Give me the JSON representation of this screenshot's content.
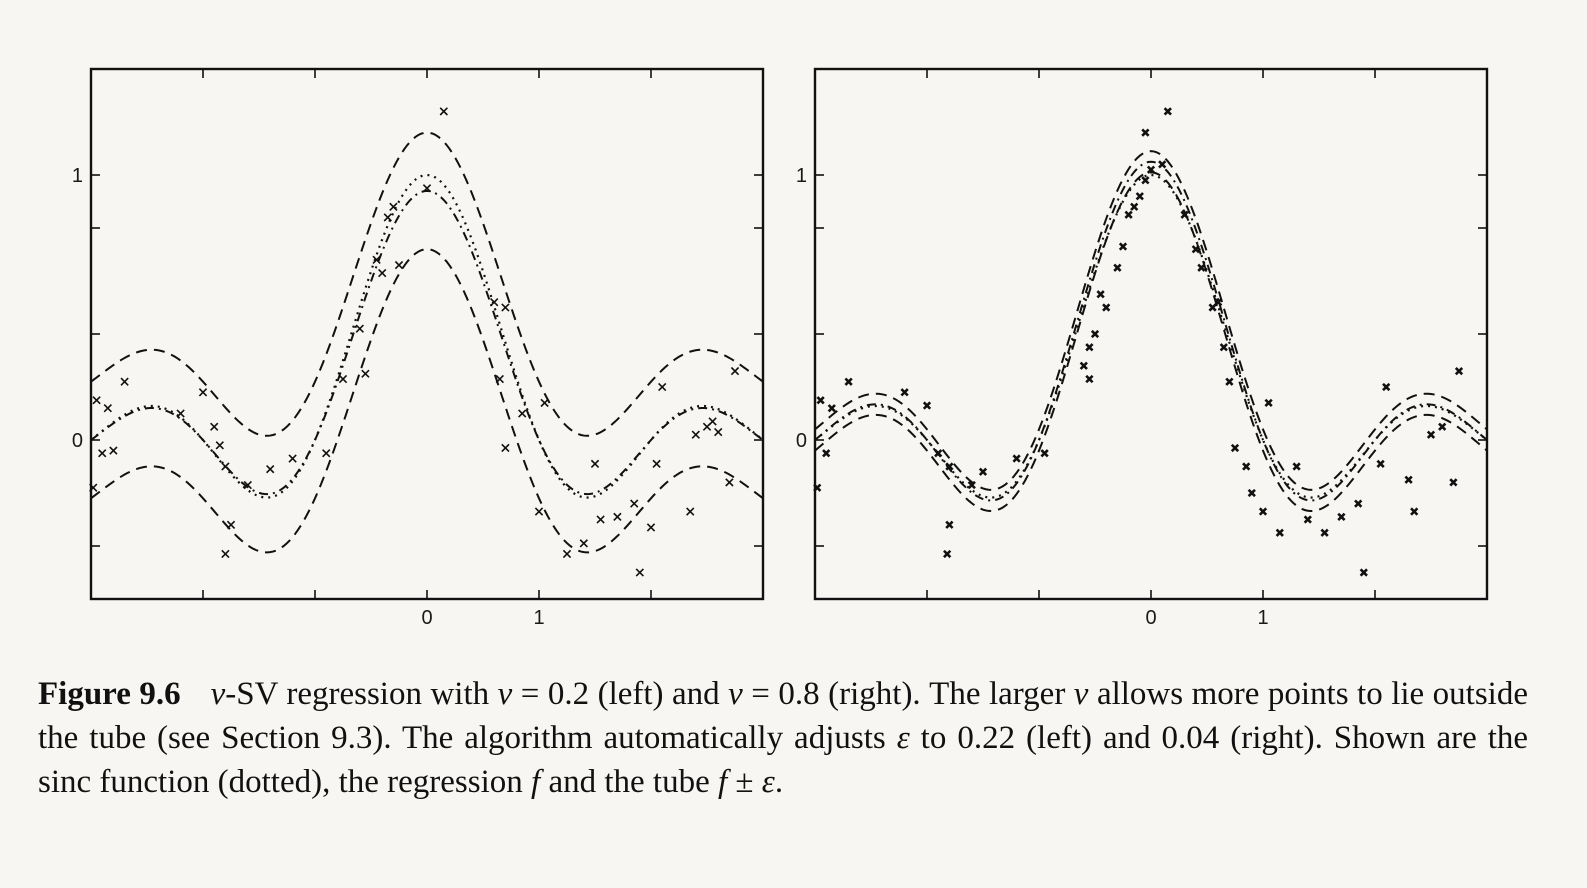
{
  "chart_data": [
    {
      "type": "line",
      "panel": "left",
      "nu": 0.2,
      "epsilon": 0.22,
      "xlim": [
        -3,
        3
      ],
      "ylim": [
        -0.6,
        1.4
      ],
      "x_ticks": [
        -2,
        -1,
        0,
        1,
        2
      ],
      "x_tick_labels": [
        "",
        "",
        "0",
        "1",
        ""
      ],
      "y_ticks": [
        -0.4,
        0,
        0.4,
        0.8,
        1
      ],
      "y_tick_labels": [
        "",
        "0",
        "",
        "",
        "1"
      ],
      "series": [
        {
          "style": "dotted",
          "function": "sinc",
          "scale": 1.0,
          "offset": 0.0
        },
        {
          "style": "dashdot",
          "function": "sinc",
          "scale": 0.94,
          "offset": 0.0
        },
        {
          "style": "dashed",
          "function": "sinc",
          "scale": 0.94,
          "offset": 0.22
        },
        {
          "style": "dashed",
          "function": "sinc",
          "scale": 0.94,
          "offset": -0.22
        }
      ],
      "points": [
        [
          -2.95,
          0.15
        ],
        [
          -2.9,
          -0.05
        ],
        [
          -2.85,
          0.12
        ],
        [
          -2.8,
          -0.04
        ],
        [
          -2.98,
          -0.18
        ],
        [
          -2.7,
          0.22
        ],
        [
          -2.2,
          0.1
        ],
        [
          -2.0,
          0.18
        ],
        [
          -1.9,
          0.05
        ],
        [
          -1.85,
          -0.02
        ],
        [
          -1.8,
          -0.1
        ],
        [
          -1.6,
          -0.17
        ],
        [
          -1.75,
          -0.32
        ],
        [
          -1.8,
          -0.43
        ],
        [
          -1.4,
          -0.11
        ],
        [
          -1.2,
          -0.07
        ],
        [
          -0.9,
          -0.05
        ],
        [
          -0.75,
          0.23
        ],
        [
          -0.55,
          0.25
        ],
        [
          -0.6,
          0.42
        ],
        [
          -0.45,
          0.68
        ],
        [
          -0.4,
          0.63
        ],
        [
          -0.35,
          0.84
        ],
        [
          -0.3,
          0.88
        ],
        [
          -0.25,
          0.66
        ],
        [
          0.0,
          0.95
        ],
        [
          0.15,
          1.24
        ],
        [
          0.6,
          0.52
        ],
        [
          0.65,
          0.23
        ],
        [
          0.7,
          0.5
        ],
        [
          0.7,
          -0.03
        ],
        [
          0.85,
          0.1
        ],
        [
          1.05,
          0.14
        ],
        [
          1.0,
          -0.27
        ],
        [
          1.25,
          -0.43
        ],
        [
          1.4,
          -0.39
        ],
        [
          1.5,
          -0.09
        ],
        [
          1.55,
          -0.3
        ],
        [
          1.7,
          -0.29
        ],
        [
          1.85,
          -0.24
        ],
        [
          1.9,
          -0.5
        ],
        [
          2.0,
          -0.33
        ],
        [
          2.05,
          -0.09
        ],
        [
          2.1,
          0.2
        ],
        [
          2.35,
          -0.27
        ],
        [
          2.4,
          0.02
        ],
        [
          2.5,
          0.05
        ],
        [
          2.55,
          0.07
        ],
        [
          2.6,
          0.03
        ],
        [
          2.7,
          -0.16
        ],
        [
          2.75,
          0.26
        ]
      ]
    },
    {
      "type": "line",
      "panel": "right",
      "nu": 0.8,
      "epsilon": 0.04,
      "xlim": [
        -3,
        3
      ],
      "ylim": [
        -0.6,
        1.4
      ],
      "x_ticks": [
        -2,
        -1,
        0,
        1,
        2
      ],
      "x_tick_labels": [
        "",
        "",
        "0",
        "1",
        ""
      ],
      "y_ticks": [
        -0.4,
        0,
        0.4,
        0.8,
        1
      ],
      "y_tick_labels": [
        "",
        "0",
        "",
        "",
        "1"
      ],
      "series": [
        {
          "style": "dotted",
          "function": "sinc",
          "scale": 1.0,
          "offset": 0.0
        },
        {
          "style": "dashdot",
          "function": "sinc",
          "scale": 1.05,
          "offset": 0.0
        },
        {
          "style": "dashed",
          "function": "sinc",
          "scale": 1.05,
          "offset": 0.04
        },
        {
          "style": "dashed",
          "function": "sinc",
          "scale": 1.05,
          "offset": -0.04
        }
      ],
      "points": [
        [
          -2.95,
          0.15
        ],
        [
          -2.85,
          0.12
        ],
        [
          -2.9,
          -0.05
        ],
        [
          -2.98,
          -0.18
        ],
        [
          -2.7,
          0.22
        ],
        [
          -2.2,
          0.18
        ],
        [
          -2.0,
          0.13
        ],
        [
          -1.9,
          -0.05
        ],
        [
          -1.8,
          -0.1
        ],
        [
          -1.8,
          -0.32
        ],
        [
          -1.82,
          -0.43
        ],
        [
          -1.6,
          -0.17
        ],
        [
          -1.5,
          -0.12
        ],
        [
          -1.2,
          -0.07
        ],
        [
          -0.95,
          -0.05
        ],
        [
          -0.55,
          0.23
        ],
        [
          -0.4,
          0.5
        ],
        [
          -0.3,
          0.65
        ],
        [
          -0.25,
          0.73
        ],
        [
          -0.45,
          0.55
        ],
        [
          -0.5,
          0.4
        ],
        [
          -0.55,
          0.35
        ],
        [
          -0.6,
          0.28
        ],
        [
          -0.2,
          0.85
        ],
        [
          -0.15,
          0.88
        ],
        [
          -0.1,
          0.92
        ],
        [
          -0.05,
          0.98
        ],
        [
          0.0,
          1.02
        ],
        [
          0.1,
          1.04
        ],
        [
          0.15,
          1.24
        ],
        [
          -0.05,
          1.16
        ],
        [
          0.3,
          0.85
        ],
        [
          0.4,
          0.72
        ],
        [
          0.45,
          0.65
        ],
        [
          0.55,
          0.5
        ],
        [
          0.6,
          0.52
        ],
        [
          0.65,
          0.35
        ],
        [
          0.7,
          0.22
        ],
        [
          0.75,
          -0.03
        ],
        [
          0.85,
          -0.1
        ],
        [
          0.9,
          -0.2
        ],
        [
          1.0,
          -0.27
        ],
        [
          1.05,
          0.14
        ],
        [
          1.15,
          -0.35
        ],
        [
          1.3,
          -0.1
        ],
        [
          1.4,
          -0.3
        ],
        [
          1.55,
          -0.35
        ],
        [
          1.7,
          -0.29
        ],
        [
          1.85,
          -0.24
        ],
        [
          1.9,
          -0.5
        ],
        [
          2.05,
          -0.09
        ],
        [
          2.1,
          0.2
        ],
        [
          2.3,
          -0.15
        ],
        [
          2.35,
          -0.27
        ],
        [
          2.5,
          0.02
        ],
        [
          2.6,
          0.05
        ],
        [
          2.7,
          -0.16
        ],
        [
          2.75,
          0.26
        ]
      ]
    }
  ],
  "caption": {
    "figure_label": "Figure 9.6",
    "segments": [
      {
        "text": "ν",
        "math": true
      },
      {
        "text": "-SV regression with ",
        "math": false
      },
      {
        "text": "ν",
        "math": true
      },
      {
        "text": " = 0.2 (left) and ",
        "math": false
      },
      {
        "text": "ν",
        "math": true
      },
      {
        "text": " = 0.8 (right). The larger ",
        "math": false
      },
      {
        "text": "ν",
        "math": true
      },
      {
        "text": " allows more points to lie outside the tube (see Section 9.3). The algorithm automatically adjusts ",
        "math": false
      },
      {
        "text": "ε",
        "math": true
      },
      {
        "text": " to 0.22 (left) and 0.04 (right). Shown are the sinc function (dotted), the regression ",
        "math": false
      },
      {
        "text": "f",
        "math": true
      },
      {
        "text": " and the tube ",
        "math": false
      },
      {
        "text": "f",
        "math": true
      },
      {
        "text": " ± ",
        "math": false
      },
      {
        "text": "ε",
        "math": true
      },
      {
        "text": ".",
        "math": false
      }
    ]
  }
}
